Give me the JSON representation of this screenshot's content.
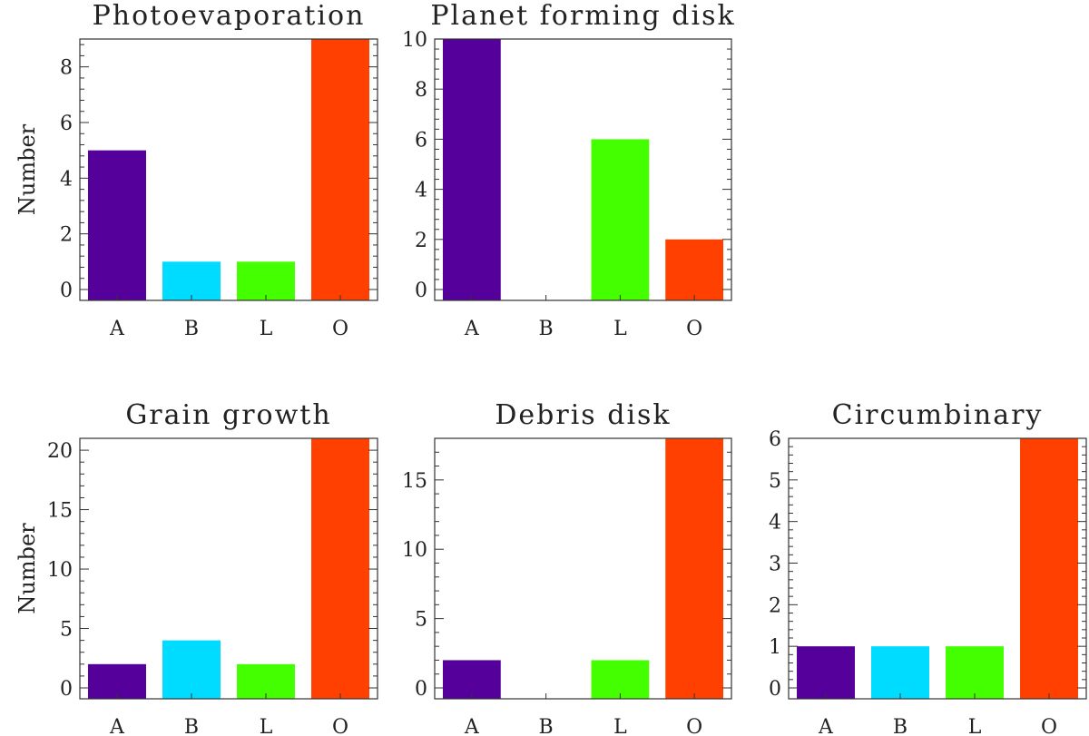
{
  "chart_data": [
    {
      "type": "bar",
      "title": "Photoevaporation",
      "ylabel": "Number",
      "categories": [
        "A",
        "B",
        "L",
        "O"
      ],
      "values": [
        5,
        1,
        1,
        9
      ],
      "ylim": [
        0,
        9
      ],
      "yticks": [
        0,
        2,
        4,
        6,
        8
      ],
      "colors": [
        "#55009b",
        "#00dcff",
        "#44ff00",
        "#ff4000"
      ]
    },
    {
      "type": "bar",
      "title": "Planet forming disk",
      "ylabel": "",
      "categories": [
        "A",
        "B",
        "L",
        "O"
      ],
      "values": [
        10,
        0,
        6,
        2
      ],
      "ylim": [
        0,
        10
      ],
      "yticks": [
        0,
        2,
        4,
        6,
        8,
        10
      ],
      "colors": [
        "#55009b",
        "#00dcff",
        "#44ff00",
        "#ff4000"
      ]
    },
    {
      "type": "bar",
      "title": "Grain growth",
      "ylabel": "Number",
      "categories": [
        "A",
        "B",
        "L",
        "O"
      ],
      "values": [
        2,
        4,
        2,
        21
      ],
      "ylim": [
        0,
        21
      ],
      "yticks": [
        0,
        5,
        10,
        15,
        20
      ],
      "colors": [
        "#55009b",
        "#00dcff",
        "#44ff00",
        "#ff4000"
      ]
    },
    {
      "type": "bar",
      "title": "Debris disk",
      "ylabel": "",
      "categories": [
        "A",
        "B",
        "L",
        "O"
      ],
      "values": [
        2,
        0,
        2,
        18
      ],
      "ylim": [
        0,
        18
      ],
      "yticks": [
        0,
        5,
        10,
        15
      ],
      "colors": [
        "#55009b",
        "#00dcff",
        "#44ff00",
        "#ff4000"
      ]
    },
    {
      "type": "bar",
      "title": "Circumbinary",
      "ylabel": "",
      "categories": [
        "A",
        "B",
        "L",
        "O"
      ],
      "values": [
        1,
        1,
        1,
        6
      ],
      "ylim": [
        0,
        6
      ],
      "yticks": [
        0,
        1,
        2,
        3,
        4,
        5,
        6
      ],
      "colors": [
        "#55009b",
        "#00dcff",
        "#44ff00",
        "#ff4000"
      ]
    }
  ]
}
